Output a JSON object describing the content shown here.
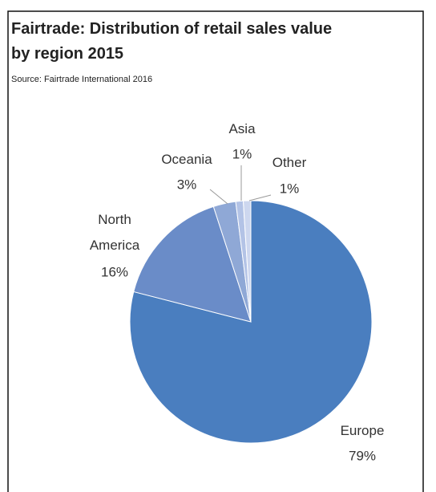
{
  "chart_data": {
    "type": "pie",
    "title": "Fairtrade: Distribution of retail sales value by region 2015",
    "subtitle": "Source: Fairtrade International 2016",
    "categories": [
      "Europe",
      "North America",
      "Oceania",
      "Asia",
      "Other"
    ],
    "values": [
      79,
      16,
      3,
      1,
      1
    ],
    "value_labels": [
      "79%",
      "16%",
      "3%",
      "1%",
      "1%"
    ],
    "colors": [
      "#4a7ebf",
      "#6a8cc8",
      "#8fa8d6",
      "#b3c3e6",
      "#cdd7ef"
    ]
  }
}
